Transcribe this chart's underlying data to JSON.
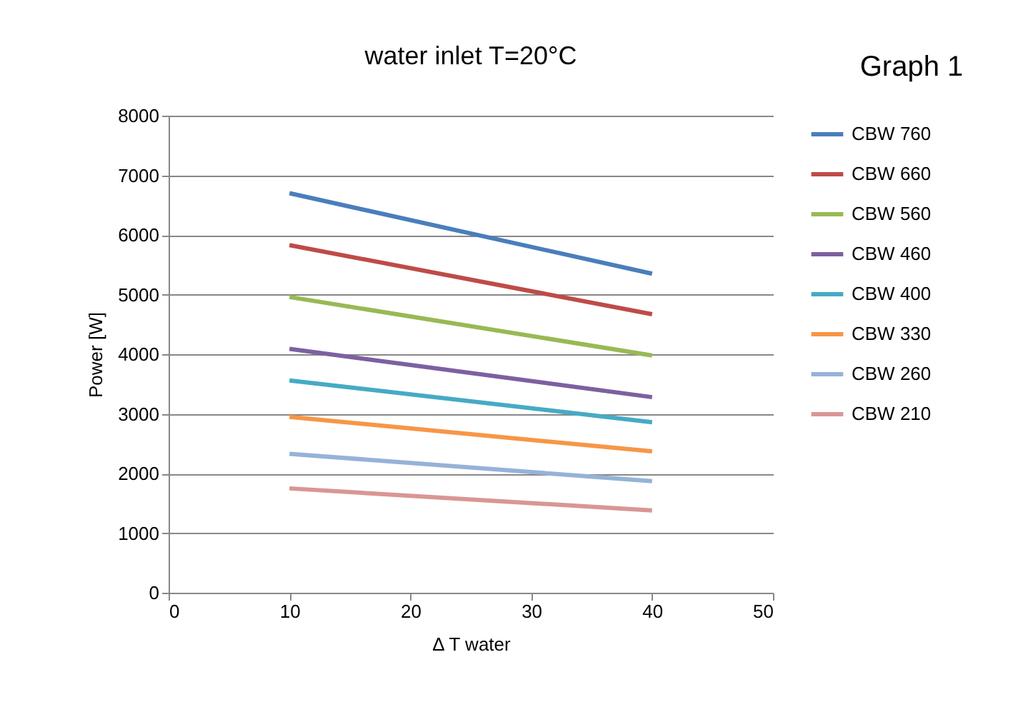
{
  "chart_data": {
    "type": "line",
    "title": "water inlet T=20°C",
    "xlabel": "Δ T water",
    "ylabel": "Power [W]",
    "annotations": [
      "Graph 1"
    ],
    "x": [
      10,
      40
    ],
    "xlim": [
      0,
      50
    ],
    "xticks": [
      0,
      10,
      20,
      30,
      40,
      50
    ],
    "ylim": [
      0,
      8000
    ],
    "yticks": [
      0,
      1000,
      2000,
      3000,
      4000,
      5000,
      6000,
      7000,
      8000
    ],
    "grid": "y",
    "legend": "right",
    "marker": "none",
    "line_style": "solid",
    "series": [
      {
        "name": "CBW 760",
        "color": "#4a7ebb",
        "values": [
          6700,
          5350
        ]
      },
      {
        "name": "CBW 660",
        "color": "#be4b48",
        "values": [
          5830,
          4670
        ]
      },
      {
        "name": "CBW 560",
        "color": "#98b954",
        "values": [
          4960,
          3980
        ]
      },
      {
        "name": "CBW 460",
        "color": "#7d60a0",
        "values": [
          4090,
          3280
        ]
      },
      {
        "name": "CBW 400",
        "color": "#46aac5",
        "values": [
          3560,
          2860
        ]
      },
      {
        "name": "CBW 330",
        "color": "#f79646",
        "values": [
          2950,
          2370
        ]
      },
      {
        "name": "CBW 260",
        "color": "#95b3d7",
        "values": [
          2330,
          1870
        ]
      },
      {
        "name": "CBW 210",
        "color": "#d99694",
        "values": [
          1750,
          1380
        ]
      }
    ]
  }
}
